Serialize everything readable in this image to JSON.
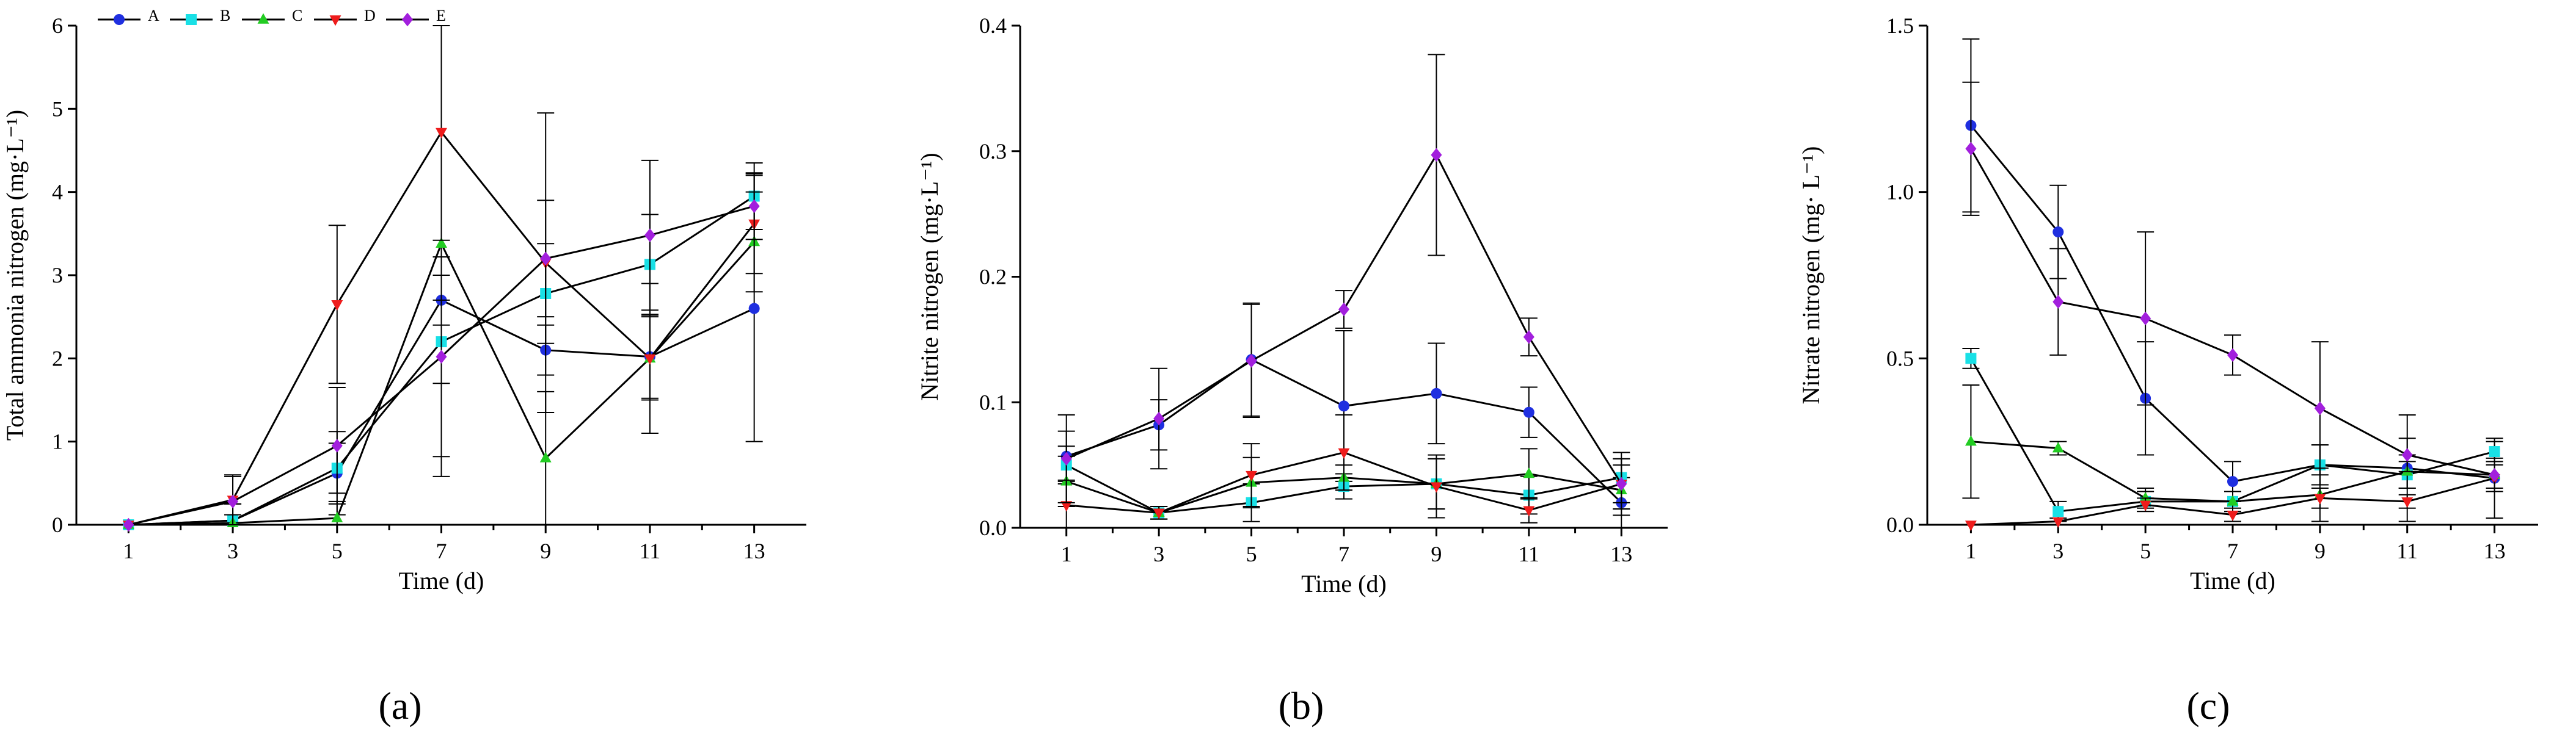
{
  "legend": {
    "entries": [
      {
        "label": "A",
        "color": "#1f2fe0",
        "marker": "circle"
      },
      {
        "label": "B",
        "color": "#19e0e6",
        "marker": "square"
      },
      {
        "label": "C",
        "color": "#22cc22",
        "marker": "triangle-up"
      },
      {
        "label": "D",
        "color": "#ee1c1c",
        "marker": "triangle-down"
      },
      {
        "label": "E",
        "color": "#a21fdd",
        "marker": "diamond"
      }
    ]
  },
  "chart_data": [
    {
      "type": "line",
      "panel_label": "(a)",
      "title": "",
      "xlabel": "Time (d)",
      "ylabel": "Total ammonia nitrogen (mg·L⁻¹)",
      "x": [
        1,
        3,
        5,
        7,
        9,
        11,
        13
      ],
      "xticks": [
        "1",
        "3",
        "5",
        "7",
        "9",
        "11",
        "13"
      ],
      "yticks": [
        "0",
        "1",
        "2",
        "3",
        "4",
        "5",
        "6"
      ],
      "ylim": [
        0,
        6
      ],
      "series": [
        {
          "name": "A",
          "values": [
            0,
            0.05,
            0.62,
            2.7,
            2.1,
            2.02,
            2.6
          ],
          "errors": [
            0,
            0.2,
            0.5,
            0.3,
            0.3,
            0.5,
            1.6
          ]
        },
        {
          "name": "B",
          "values": [
            0,
            0.05,
            0.68,
            2.2,
            2.78,
            3.13,
            3.95
          ],
          "errors": [
            0,
            0.2,
            0.3,
            0.5,
            0.6,
            0.6,
            0.4
          ]
        },
        {
          "name": "C",
          "values": [
            0,
            0.02,
            0.08,
            3.38,
            0.8,
            2.0,
            3.4
          ],
          "errors": [
            0,
            0.1,
            0.2,
            2.8,
            0.8,
            0.9,
            0.6
          ]
        },
        {
          "name": "D",
          "values": [
            0,
            0.3,
            2.65,
            4.72,
            3.15,
            2.0,
            3.62
          ],
          "errors": [
            0,
            0.3,
            0.95,
            1.3,
            1.8,
            0.5,
            0.6
          ]
        },
        {
          "name": "E",
          "values": [
            0,
            0.28,
            0.95,
            2.02,
            3.2,
            3.48,
            3.83
          ],
          "errors": [
            0,
            0.3,
            0.7,
            1.2,
            0.7,
            0.9,
            0.4
          ]
        }
      ]
    },
    {
      "type": "line",
      "panel_label": "(b)",
      "title": "",
      "xlabel": "Time (d)",
      "ylabel": "Nitrite nitrogen (mg·L⁻¹)",
      "x": [
        1,
        3,
        5,
        7,
        9,
        11,
        13
      ],
      "xticks": [
        "1",
        "3",
        "5",
        "7",
        "9",
        "11",
        "13"
      ],
      "yticks": [
        "0.0",
        "0.1",
        "0.2",
        "0.3",
        "0.4"
      ],
      "ylim": [
        0,
        0.4
      ],
      "series": [
        {
          "name": "A",
          "values": [
            0.057,
            0.082,
            0.134,
            0.097,
            0.107,
            0.092,
            0.02
          ],
          "errors": [
            0.02,
            0.02,
            0.045,
            0.06,
            0.04,
            0.02,
            0.02
          ]
        },
        {
          "name": "B",
          "values": [
            0.05,
            0.012,
            0.02,
            0.033,
            0.035,
            0.026,
            0.04
          ],
          "errors": [
            0.015,
            0.005,
            0.015,
            0.01,
            0.02,
            0.015,
            0.02
          ]
        },
        {
          "name": "C",
          "values": [
            0.037,
            0.012,
            0.036,
            0.04,
            0.035,
            0.043,
            0.03
          ],
          "errors": [
            0.02,
            0.005,
            0.02,
            0.01,
            0.02,
            0.02,
            0.02
          ]
        },
        {
          "name": "D",
          "values": [
            0.018,
            0.012,
            0.042,
            0.06,
            0.033,
            0.014,
            0.035
          ],
          "errors": [
            0.02,
            0.005,
            0.025,
            0.03,
            0.025,
            0.01,
            0.02
          ]
        },
        {
          "name": "E",
          "values": [
            0.055,
            0.087,
            0.133,
            0.174,
            0.297,
            0.152,
            0.035
          ],
          "errors": [
            0.035,
            0.04,
            0.045,
            0.015,
            0.08,
            0.015,
            0.02
          ]
        }
      ]
    },
    {
      "type": "line",
      "panel_label": "(c)",
      "title": "",
      "xlabel": "Time (d)",
      "ylabel": "Nitrate nitrogen (mg· L⁻¹)",
      "x": [
        1,
        3,
        5,
        7,
        9,
        11,
        13
      ],
      "xticks": [
        "1",
        "3",
        "5",
        "7",
        "9",
        "11",
        "13"
      ],
      "yticks": [
        "0.0",
        "0.5",
        "1.0",
        "1.5"
      ],
      "ylim": [
        0,
        1.5
      ],
      "series": [
        {
          "name": "A",
          "values": [
            1.2,
            0.88,
            0.38,
            0.13,
            0.18,
            0.17,
            0.14
          ],
          "errors": [
            0.26,
            0.14,
            0.17,
            0.06,
            0.06,
            0.16,
            0.12
          ]
        },
        {
          "name": "B",
          "values": [
            0.5,
            0.04,
            0.07,
            0.07,
            0.18,
            0.15,
            0.22
          ],
          "errors": [
            0.03,
            0.03,
            0.03,
            0.03,
            0.06,
            0.04,
            0.03
          ]
        },
        {
          "name": "C",
          "values": [
            0.25,
            0.23,
            0.08,
            0.07,
            0.09,
            0.16,
            0.15
          ],
          "errors": [
            0.17,
            0.02,
            0.03,
            0.03,
            0.08,
            0.05,
            0.05
          ]
        },
        {
          "name": "D",
          "values": [
            0.0,
            0.01,
            0.06,
            0.03,
            0.08,
            0.07,
            0.14
          ],
          "errors": [
            0.0,
            0.01,
            0.02,
            0.02,
            0.03,
            0.02,
            0.04
          ]
        },
        {
          "name": "E",
          "values": [
            1.13,
            0.67,
            0.62,
            0.51,
            0.35,
            0.21,
            0.15
          ],
          "errors": [
            0.2,
            0.16,
            0.26,
            0.06,
            0.2,
            0.05,
            0.04
          ]
        }
      ]
    }
  ]
}
